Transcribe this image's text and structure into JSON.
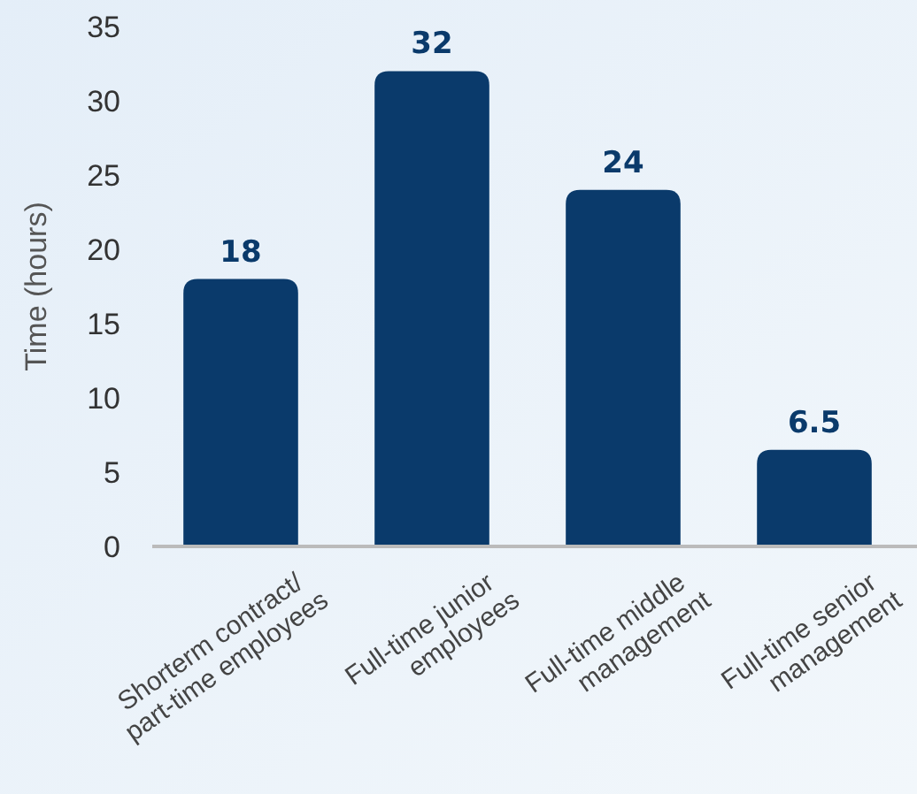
{
  "chart_data": {
    "type": "bar",
    "ylabel": "Time (hours)",
    "categories": [
      "Shorterm contract/\npart-time employees",
      "Full-time junior\nemployees",
      "Full-time middle\nmanagement",
      "Full-time senior\nmanagement"
    ],
    "values": [
      18,
      32,
      24,
      6.5
    ],
    "color": "#0a3a6b",
    "ylim": [
      0,
      35
    ],
    "yticks": [
      0,
      5,
      10,
      15,
      20,
      25,
      30,
      35
    ],
    "grid": false,
    "data_labels": true
  }
}
